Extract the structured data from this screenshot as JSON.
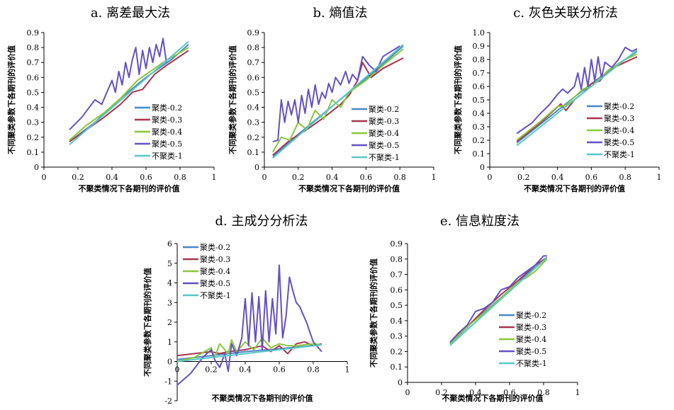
{
  "colors": {
    "聚类-0.2": "#4a86c8",
    "聚类-0.3": "#a8344e",
    "聚类-0.4": "#88c83a",
    "聚类-0.5": "#6650c4",
    "不聚类-1": "#58c8c8"
  },
  "chart_data": [
    {
      "type": "line",
      "title": "a. 离差最大法",
      "xlabel": "不聚类情况下各期刊的评价值",
      "ylabel": "不同聚类参数下各期刊的评价值",
      "xlim": [
        0,
        1
      ],
      "ylim": [
        0,
        0.9
      ],
      "xticks": [
        "0",
        "0.2",
        "0.4",
        "0.6",
        "0.8",
        "1"
      ],
      "yticks": [
        "0",
        "0.1",
        "0.2",
        "0.3",
        "0.4",
        "0.5",
        "0.6",
        "0.7",
        "0.8",
        "0.9"
      ],
      "legend_position": "center-right",
      "series": [
        {
          "name": "聚类-0.2",
          "x": [
            0.15,
            0.3,
            0.45,
            0.6,
            0.75,
            0.85
          ],
          "y": [
            0.17,
            0.3,
            0.46,
            0.6,
            0.72,
            0.82
          ]
        },
        {
          "name": "聚类-0.3",
          "x": [
            0.15,
            0.25,
            0.35,
            0.45,
            0.52,
            0.58,
            0.65,
            0.72,
            0.85
          ],
          "y": [
            0.17,
            0.25,
            0.33,
            0.42,
            0.5,
            0.52,
            0.62,
            0.68,
            0.78
          ]
        },
        {
          "name": "聚类-0.4",
          "x": [
            0.15,
            0.25,
            0.35,
            0.45,
            0.5,
            0.55,
            0.6,
            0.65,
            0.7,
            0.85
          ],
          "y": [
            0.18,
            0.28,
            0.36,
            0.46,
            0.52,
            0.58,
            0.62,
            0.66,
            0.7,
            0.8
          ]
        },
        {
          "name": "聚类-0.5",
          "x": [
            0.15,
            0.22,
            0.3,
            0.34,
            0.37,
            0.4,
            0.42,
            0.44,
            0.46,
            0.48,
            0.5,
            0.52,
            0.54,
            0.56,
            0.58,
            0.6,
            0.62,
            0.64,
            0.66,
            0.68,
            0.7,
            0.72
          ],
          "y": [
            0.25,
            0.33,
            0.45,
            0.42,
            0.5,
            0.58,
            0.5,
            0.64,
            0.55,
            0.7,
            0.6,
            0.72,
            0.8,
            0.62,
            0.78,
            0.66,
            0.8,
            0.7,
            0.82,
            0.74,
            0.86,
            0.7
          ]
        },
        {
          "name": "不聚类-1",
          "x": [
            0.15,
            0.85
          ],
          "y": [
            0.15,
            0.84
          ]
        }
      ]
    },
    {
      "type": "line",
      "title": "b. 熵值法",
      "xlabel": "不聚类情况下各期刊的评价值",
      "ylabel": "不同聚类参数下各期刊的评价值",
      "xlim": [
        0,
        1
      ],
      "ylim": [
        0,
        0.9
      ],
      "xticks": [
        "0",
        "0.2",
        "0.4",
        "0.6",
        "0.8",
        "1"
      ],
      "yticks": [
        "0",
        "0.1",
        "0.2",
        "0.3",
        "0.4",
        "0.5",
        "0.6",
        "0.7",
        "0.8",
        "0.9"
      ],
      "legend_position": "center-right",
      "series": [
        {
          "name": "聚类-0.2",
          "x": [
            0.05,
            0.2,
            0.35,
            0.5,
            0.65,
            0.82
          ],
          "y": [
            0.07,
            0.22,
            0.36,
            0.5,
            0.64,
            0.81
          ]
        },
        {
          "name": "聚类-0.3",
          "x": [
            0.05,
            0.15,
            0.25,
            0.35,
            0.45,
            0.5,
            0.55,
            0.58,
            0.63,
            0.7,
            0.82
          ],
          "y": [
            0.08,
            0.18,
            0.25,
            0.33,
            0.42,
            0.48,
            0.58,
            0.7,
            0.6,
            0.66,
            0.73
          ]
        },
        {
          "name": "聚类-0.4",
          "x": [
            0.05,
            0.1,
            0.15,
            0.2,
            0.25,
            0.3,
            0.35,
            0.4,
            0.45,
            0.5,
            0.6,
            0.7,
            0.82
          ],
          "y": [
            0.1,
            0.2,
            0.18,
            0.3,
            0.25,
            0.38,
            0.32,
            0.45,
            0.4,
            0.5,
            0.58,
            0.68,
            0.79
          ]
        },
        {
          "name": "聚类-0.5",
          "x": [
            0.05,
            0.08,
            0.1,
            0.12,
            0.14,
            0.16,
            0.18,
            0.2,
            0.22,
            0.24,
            0.26,
            0.28,
            0.3,
            0.32,
            0.34,
            0.36,
            0.38,
            0.4,
            0.42,
            0.45,
            0.48,
            0.5,
            0.52,
            0.55,
            0.58,
            0.62,
            0.66,
            0.7,
            0.8
          ],
          "y": [
            0.17,
            0.18,
            0.45,
            0.3,
            0.44,
            0.35,
            0.45,
            0.3,
            0.48,
            0.36,
            0.52,
            0.4,
            0.55,
            0.42,
            0.5,
            0.46,
            0.56,
            0.5,
            0.6,
            0.55,
            0.64,
            0.56,
            0.62,
            0.58,
            0.74,
            0.68,
            0.64,
            0.74,
            0.81
          ]
        },
        {
          "name": "不聚类-1",
          "x": [
            0.05,
            0.82
          ],
          "y": [
            0.06,
            0.82
          ]
        }
      ]
    },
    {
      "type": "line",
      "title": "c. 灰色关联分析法",
      "xlabel": "不聚类情况下各期刊的评价值",
      "ylabel": "不同聚类参数下各期刊的评价值",
      "xlim": [
        0,
        1
      ],
      "ylim": [
        0,
        1.0
      ],
      "xticks": [
        "0",
        "0.2",
        "0.4",
        "0.6",
        "0.8",
        "1"
      ],
      "yticks": [
        "0",
        "0.1",
        "0.2",
        "0.3",
        "0.4",
        "0.5",
        "0.6",
        "0.7",
        "0.8",
        "0.9",
        "1.0"
      ],
      "legend_position": "center-right",
      "series": [
        {
          "name": "聚类-0.2",
          "x": [
            0.16,
            0.3,
            0.45,
            0.6,
            0.75,
            0.87
          ],
          "y": [
            0.18,
            0.32,
            0.47,
            0.62,
            0.76,
            0.86
          ]
        },
        {
          "name": "聚类-0.3",
          "x": [
            0.16,
            0.3,
            0.42,
            0.45,
            0.5,
            0.55,
            0.6,
            0.65,
            0.7,
            0.8,
            0.87
          ],
          "y": [
            0.19,
            0.33,
            0.47,
            0.42,
            0.5,
            0.55,
            0.62,
            0.64,
            0.72,
            0.78,
            0.82
          ]
        },
        {
          "name": "聚类-0.4",
          "x": [
            0.16,
            0.3,
            0.4,
            0.45,
            0.5,
            0.55,
            0.6,
            0.65,
            0.7,
            0.8,
            0.87
          ],
          "y": [
            0.2,
            0.34,
            0.45,
            0.46,
            0.52,
            0.58,
            0.6,
            0.66,
            0.72,
            0.8,
            0.84
          ]
        },
        {
          "name": "聚类-0.5",
          "x": [
            0.16,
            0.25,
            0.3,
            0.35,
            0.4,
            0.43,
            0.46,
            0.5,
            0.52,
            0.54,
            0.56,
            0.58,
            0.6,
            0.62,
            0.64,
            0.66,
            0.68,
            0.72,
            0.76,
            0.8,
            0.84,
            0.87
          ],
          "y": [
            0.25,
            0.33,
            0.4,
            0.46,
            0.54,
            0.58,
            0.55,
            0.6,
            0.7,
            0.58,
            0.74,
            0.6,
            0.8,
            0.64,
            0.82,
            0.66,
            0.78,
            0.74,
            0.8,
            0.89,
            0.86,
            0.88
          ]
        },
        {
          "name": "不聚类-1",
          "x": [
            0.16,
            0.87
          ],
          "y": [
            0.16,
            0.87
          ]
        }
      ]
    },
    {
      "type": "line",
      "title": "d. 主成分分析法",
      "xlabel": "不聚类情况下各期刊的评价值",
      "ylabel": "不同聚类参数下各期刊的评价值",
      "xlim": [
        0,
        1
      ],
      "ylim": [
        -2,
        6
      ],
      "xticks": [
        "0",
        "0.2",
        "0.4",
        "0.6",
        "0.8",
        "1"
      ],
      "yticks": [
        "-2",
        "-1",
        "0",
        "1",
        "2",
        "3",
        "4",
        "5",
        "6"
      ],
      "legend_position": "top-left",
      "series": [
        {
          "name": "聚类-0.2",
          "x": [
            0.0,
            0.2,
            0.4,
            0.6,
            0.85
          ],
          "y": [
            0.1,
            0.3,
            0.5,
            0.65,
            0.85
          ]
        },
        {
          "name": "聚类-0.3",
          "x": [
            0.0,
            0.2,
            0.25,
            0.3,
            0.4,
            0.5,
            0.55,
            0.6,
            0.65,
            0.7,
            0.75,
            0.8,
            0.85
          ],
          "y": [
            0.3,
            0.5,
            0.4,
            0.5,
            0.6,
            0.8,
            0.5,
            0.8,
            0.4,
            0.9,
            1.0,
            0.8,
            0.9
          ]
        },
        {
          "name": "聚类-0.4",
          "x": [
            0.0,
            0.1,
            0.2,
            0.22,
            0.25,
            0.3,
            0.32,
            0.35,
            0.4,
            0.45,
            0.5,
            0.55,
            0.6,
            0.65,
            0.7,
            0.8,
            0.85
          ],
          "y": [
            0.0,
            0.2,
            0.7,
            0.2,
            0.9,
            0.4,
            1.1,
            0.5,
            1.0,
            0.6,
            1.2,
            0.7,
            0.9,
            0.8,
            0.8,
            0.9,
            0.85
          ]
        },
        {
          "name": "聚类-0.5",
          "x": [
            0.0,
            0.08,
            0.15,
            0.2,
            0.22,
            0.25,
            0.28,
            0.3,
            0.32,
            0.35,
            0.38,
            0.4,
            0.42,
            0.44,
            0.46,
            0.48,
            0.5,
            0.52,
            0.54,
            0.56,
            0.58,
            0.6,
            0.62,
            0.64,
            0.66,
            0.68,
            0.7,
            0.72,
            0.76,
            0.8,
            0.85
          ],
          "y": [
            -1.2,
            -0.6,
            0.2,
            0.6,
            0.1,
            -0.3,
            0.4,
            -0.5,
            0.9,
            0.3,
            1.2,
            3.2,
            0.8,
            3.5,
            1.0,
            3.3,
            0.6,
            3.6,
            1.0,
            3.2,
            1.4,
            4.9,
            1.2,
            2.3,
            4.3,
            3.6,
            3.0,
            2.8,
            2.0,
            1.0,
            0.5
          ]
        },
        {
          "name": "不聚类-1",
          "x": [
            0.0,
            0.85
          ],
          "y": [
            0.0,
            0.85
          ]
        }
      ]
    },
    {
      "type": "line",
      "title": "e. 信息粒度法",
      "xlabel": "不聚类情况下各期刊的评价值",
      "ylabel": "不同聚类参数下各期刊的评价值",
      "xlim": [
        0,
        1
      ],
      "ylim": [
        0,
        0.9
      ],
      "xticks": [
        "0",
        "0.2",
        "0.4",
        "0.6",
        "0.8",
        "1"
      ],
      "yticks": [
        "0",
        "0.1",
        "0.2",
        "0.3",
        "0.4",
        "0.5",
        "0.6",
        "0.7",
        "0.8",
        "0.9"
      ],
      "legend_position": "bottom-right",
      "series": [
        {
          "name": "聚类-0.2",
          "x": [
            0.25,
            0.4,
            0.55,
            0.7,
            0.82
          ],
          "y": [
            0.25,
            0.41,
            0.55,
            0.7,
            0.81
          ]
        },
        {
          "name": "聚类-0.3",
          "x": [
            0.25,
            0.35,
            0.45,
            0.55,
            0.65,
            0.75,
            0.82
          ],
          "y": [
            0.26,
            0.36,
            0.47,
            0.57,
            0.66,
            0.76,
            0.81
          ]
        },
        {
          "name": "聚类-0.4",
          "x": [
            0.25,
            0.35,
            0.45,
            0.55,
            0.65,
            0.7,
            0.75,
            0.82
          ],
          "y": [
            0.25,
            0.36,
            0.45,
            0.55,
            0.65,
            0.68,
            0.72,
            0.8
          ]
        },
        {
          "name": "聚类-0.5",
          "x": [
            0.25,
            0.3,
            0.35,
            0.4,
            0.45,
            0.5,
            0.55,
            0.6,
            0.65,
            0.7,
            0.75,
            0.8,
            0.82
          ],
          "y": [
            0.26,
            0.32,
            0.37,
            0.46,
            0.48,
            0.52,
            0.6,
            0.62,
            0.68,
            0.72,
            0.76,
            0.82,
            0.82
          ]
        },
        {
          "name": "不聚类-1",
          "x": [
            0.25,
            0.82
          ],
          "y": [
            0.24,
            0.81
          ]
        }
      ]
    }
  ]
}
